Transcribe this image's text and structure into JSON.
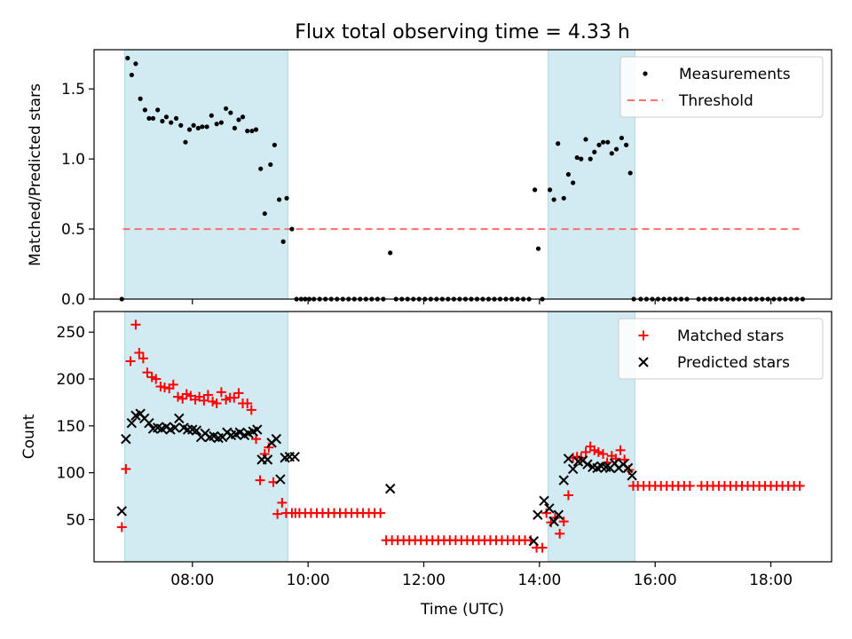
{
  "title": "Flux total observing time = 4.33 h",
  "colors": {
    "span": "#add8e6",
    "measurement": "#000000",
    "threshold": "#ff6f6f",
    "matched": "#ff0000",
    "predicted": "#000000"
  },
  "chart_data": [
    {
      "type": "scatter",
      "xlabel": "",
      "ylabel": "Matched/Predicted stars",
      "ylim": [
        0,
        1.78
      ],
      "yticks": [
        0.0,
        0.5,
        1.0,
        1.5
      ],
      "ytick_labels": [
        "0.0",
        "0.5",
        "1.0",
        "1.5"
      ],
      "x_ticks_hours": [
        8,
        10,
        12,
        14,
        16,
        18
      ],
      "xlim_hours": [
        6.3,
        19.05
      ],
      "shaded_spans_hours": [
        [
          6.83,
          9.65
        ],
        [
          14.15,
          15.65
        ]
      ],
      "legend": {
        "placement": "top-right",
        "entries": [
          "Measurements",
          "Threshold"
        ]
      },
      "threshold": {
        "y": 0.5,
        "x_hours": [
          6.8,
          18.55
        ]
      },
      "series": [
        {
          "name": "Measurements",
          "x_hours": [
            6.78,
            6.88,
            6.95,
            7.02,
            7.1,
            7.18,
            7.25,
            7.32,
            7.4,
            7.48,
            7.55,
            7.63,
            7.72,
            7.8,
            7.88,
            7.95,
            8.02,
            8.1,
            8.17,
            8.25,
            8.33,
            8.42,
            8.5,
            8.58,
            8.66,
            8.73,
            8.8,
            8.87,
            8.95,
            9.03,
            9.1,
            9.18,
            9.25,
            9.35,
            9.42,
            9.5,
            9.57,
            9.63,
            9.72,
            9.8,
            9.88,
            9.95,
            10.02,
            10.1,
            10.2,
            10.3,
            10.4,
            10.5,
            10.6,
            10.7,
            10.8,
            10.9,
            11.0,
            11.1,
            11.2,
            11.3,
            11.42,
            11.52,
            11.62,
            11.72,
            11.82,
            11.92,
            12.02,
            12.12,
            12.22,
            12.32,
            12.42,
            12.52,
            12.62,
            12.72,
            12.82,
            12.92,
            13.02,
            13.12,
            13.22,
            13.32,
            13.42,
            13.52,
            13.62,
            13.72,
            13.82,
            13.92,
            13.98,
            14.05,
            14.18,
            14.25,
            14.32,
            14.42,
            14.5,
            14.58,
            14.65,
            14.72,
            14.8,
            14.88,
            14.95,
            15.03,
            15.1,
            15.18,
            15.25,
            15.33,
            15.42,
            15.5,
            15.57,
            15.63,
            15.75,
            15.85,
            15.95,
            16.05,
            16.15,
            16.25,
            16.35,
            16.45,
            16.55,
            16.75,
            16.85,
            16.95,
            17.05,
            17.15,
            17.25,
            17.35,
            17.45,
            17.55,
            17.65,
            17.75,
            17.85,
            17.95,
            18.05,
            18.15,
            18.25,
            18.35,
            18.45,
            18.55
          ],
          "y": [
            0.0,
            1.72,
            1.6,
            1.68,
            1.43,
            1.35,
            1.29,
            1.29,
            1.35,
            1.27,
            1.3,
            1.26,
            1.29,
            1.24,
            1.12,
            1.21,
            1.24,
            1.22,
            1.23,
            1.23,
            1.31,
            1.25,
            1.26,
            1.36,
            1.33,
            1.22,
            1.28,
            1.3,
            1.2,
            1.2,
            1.21,
            0.93,
            0.61,
            0.96,
            1.1,
            0.71,
            0.41,
            0.72,
            0.5,
            0.0,
            0.0,
            0.0,
            0.0,
            0.0,
            0.0,
            0.0,
            0.0,
            0.0,
            0.0,
            0.0,
            0.0,
            0.0,
            0.0,
            0.0,
            0.0,
            0.0,
            0.33,
            0.0,
            0.0,
            0.0,
            0.0,
            0.0,
            0.0,
            0.0,
            0.0,
            0.0,
            0.0,
            0.0,
            0.0,
            0.0,
            0.0,
            0.0,
            0.0,
            0.0,
            0.0,
            0.0,
            0.0,
            0.0,
            0.0,
            0.0,
            0.0,
            0.78,
            0.36,
            0.0,
            0.78,
            0.71,
            1.11,
            0.72,
            0.89,
            0.83,
            1.01,
            1.0,
            1.14,
            1.0,
            1.05,
            1.1,
            1.12,
            1.12,
            1.04,
            1.07,
            1.15,
            1.1,
            0.9,
            0.0,
            0.0,
            0.0,
            0.0,
            0.0,
            0.0,
            0.0,
            0.0,
            0.0,
            0.0,
            0.0,
            0.0,
            0.0,
            0.0,
            0.0,
            0.0,
            0.0,
            0.0,
            0.0,
            0.0,
            0.0,
            0.0,
            0.0,
            0.0,
            0.0,
            0.0,
            0.0,
            0.0,
            0.0
          ]
        }
      ]
    },
    {
      "type": "scatter",
      "xlabel": "Time (UTC)",
      "ylabel": "Count",
      "ylim": [
        5,
        272
      ],
      "yticks": [
        50,
        100,
        150,
        200,
        250
      ],
      "ytick_labels": [
        "50",
        "100",
        "150",
        "200",
        "250"
      ],
      "x_ticks_hours": [
        8,
        10,
        12,
        14,
        16,
        18
      ],
      "x_tick_labels": [
        "08:00",
        "10:00",
        "12:00",
        "14:00",
        "16:00",
        "18:00"
      ],
      "xlim_hours": [
        6.3,
        19.05
      ],
      "shaded_spans_hours": [
        [
          6.83,
          9.65
        ],
        [
          14.15,
          15.65
        ]
      ],
      "legend": {
        "placement": "top-right",
        "entries": [
          "Matched stars",
          "Predicted stars"
        ]
      },
      "series": [
        {
          "name": "Matched stars",
          "x_hours": [
            6.78,
            6.85,
            6.93,
            7.02,
            7.08,
            7.15,
            7.22,
            7.3,
            7.37,
            7.45,
            7.52,
            7.6,
            7.67,
            7.75,
            7.83,
            7.9,
            7.97,
            8.05,
            8.12,
            8.2,
            8.27,
            8.35,
            8.42,
            8.5,
            8.58,
            8.65,
            8.72,
            8.8,
            8.87,
            8.95,
            9.02,
            9.1,
            9.17,
            9.25,
            9.32,
            9.4,
            9.47,
            9.55,
            9.62,
            9.72,
            9.78,
            9.85,
            9.95,
            10.05,
            10.15,
            10.25,
            10.35,
            10.45,
            10.55,
            10.65,
            10.75,
            10.85,
            10.95,
            11.05,
            11.15,
            11.25,
            11.35,
            11.45,
            11.55,
            11.65,
            11.75,
            11.85,
            11.95,
            12.05,
            12.15,
            12.25,
            12.35,
            12.45,
            12.55,
            12.65,
            12.75,
            12.85,
            12.95,
            13.05,
            13.15,
            13.25,
            13.35,
            13.45,
            13.55,
            13.65,
            13.75,
            13.85,
            13.95,
            14.05,
            14.12,
            14.2,
            14.27,
            14.35,
            14.42,
            14.5,
            14.58,
            14.65,
            14.72,
            14.8,
            14.88,
            14.95,
            15.02,
            15.1,
            15.17,
            15.25,
            15.32,
            15.4,
            15.47,
            15.55,
            15.62,
            15.7,
            15.8,
            15.9,
            16.0,
            16.1,
            16.2,
            16.3,
            16.4,
            16.5,
            16.6,
            16.8,
            16.9,
            17.0,
            17.1,
            17.2,
            17.3,
            17.4,
            17.5,
            17.6,
            17.7,
            17.8,
            17.9,
            18.0,
            18.1,
            18.2,
            18.3,
            18.4,
            18.5
          ],
          "y": [
            42,
            104,
            219,
            258,
            228,
            222,
            207,
            202,
            200,
            192,
            191,
            190,
            194,
            181,
            179,
            184,
            182,
            178,
            181,
            177,
            183,
            176,
            174,
            186,
            178,
            180,
            180,
            185,
            174,
            174,
            167,
            136,
            92,
            120,
            127,
            90,
            56,
            68,
            57,
            57,
            57,
            57,
            57,
            57,
            57,
            57,
            57,
            57,
            57,
            57,
            57,
            57,
            57,
            57,
            57,
            57,
            28,
            28,
            28,
            28,
            28,
            28,
            28,
            28,
            28,
            28,
            28,
            28,
            28,
            28,
            28,
            28,
            28,
            28,
            28,
            28,
            28,
            28,
            28,
            28,
            28,
            28,
            20,
            20,
            57,
            47,
            52,
            35,
            48,
            76,
            116,
            117,
            116,
            122,
            128,
            124,
            122,
            120,
            111,
            118,
            115,
            124,
            114,
            103,
            86,
            86,
            86,
            86,
            86,
            86,
            86,
            86,
            86,
            86,
            86,
            86,
            86,
            86,
            86,
            86,
            86,
            86,
            86,
            86,
            86,
            86,
            86,
            86,
            86,
            86,
            86,
            86,
            86
          ]
        },
        {
          "name": "Predicted stars",
          "x_hours": [
            6.78,
            6.85,
            6.95,
            7.02,
            7.1,
            7.17,
            7.25,
            7.32,
            7.4,
            7.47,
            7.55,
            7.62,
            7.7,
            7.77,
            7.85,
            7.92,
            8.0,
            8.07,
            8.15,
            8.22,
            8.3,
            8.37,
            8.45,
            8.52,
            8.6,
            8.67,
            8.75,
            8.82,
            8.9,
            8.97,
            9.05,
            9.12,
            9.2,
            9.3,
            9.37,
            9.45,
            9.52,
            9.6,
            9.68,
            9.77,
            11.42,
            13.9,
            13.97,
            14.08,
            14.17,
            14.25,
            14.33,
            14.42,
            14.5,
            14.58,
            14.67,
            14.75,
            14.83,
            14.92,
            15.0,
            15.07,
            15.15,
            15.22,
            15.3,
            15.37,
            15.45,
            15.53,
            15.6
          ],
          "y": [
            59,
            136,
            153,
            161,
            163,
            158,
            153,
            147,
            148,
            147,
            149,
            146,
            148,
            158,
            148,
            146,
            146,
            145,
            138,
            142,
            138,
            139,
            137,
            138,
            143,
            140,
            141,
            143,
            140,
            142,
            144,
            146,
            114,
            114,
            132,
            136,
            93,
            116,
            117,
            117,
            83,
            27,
            55,
            70,
            62,
            48,
            55,
            92,
            115,
            104,
            112,
            113,
            109,
            106,
            105,
            107,
            106,
            105,
            110,
            105,
            109,
            105,
            97
          ]
        }
      ]
    }
  ]
}
